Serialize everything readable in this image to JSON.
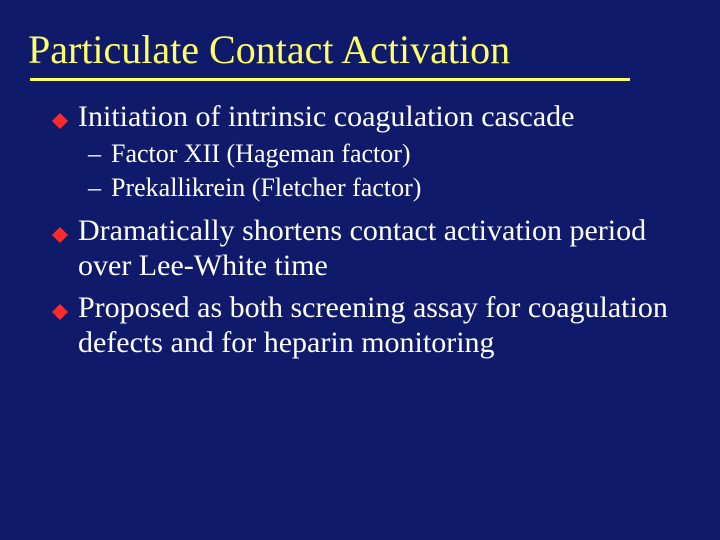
{
  "colors": {
    "background": "#0f1a6a",
    "title": "#ffff66",
    "rule": "#ffff66",
    "bullet": "#ff2a2a",
    "body": "#ffffff"
  },
  "title": "Particulate Contact Activation",
  "items": [
    {
      "first": "Initiation",
      "rest": " of intrinsic coagulation cascade",
      "sub": [
        "Factor XII (Hageman factor)",
        "Prekallikrein (Fletcher factor)"
      ]
    },
    {
      "first": "Dramatically",
      "rest": " shortens contact activation period over Lee-White time",
      "sub": []
    },
    {
      "first": "Proposed",
      "rest": " as both screening assay for coagulation defects and for heparin monitoring",
      "sub": []
    }
  ]
}
